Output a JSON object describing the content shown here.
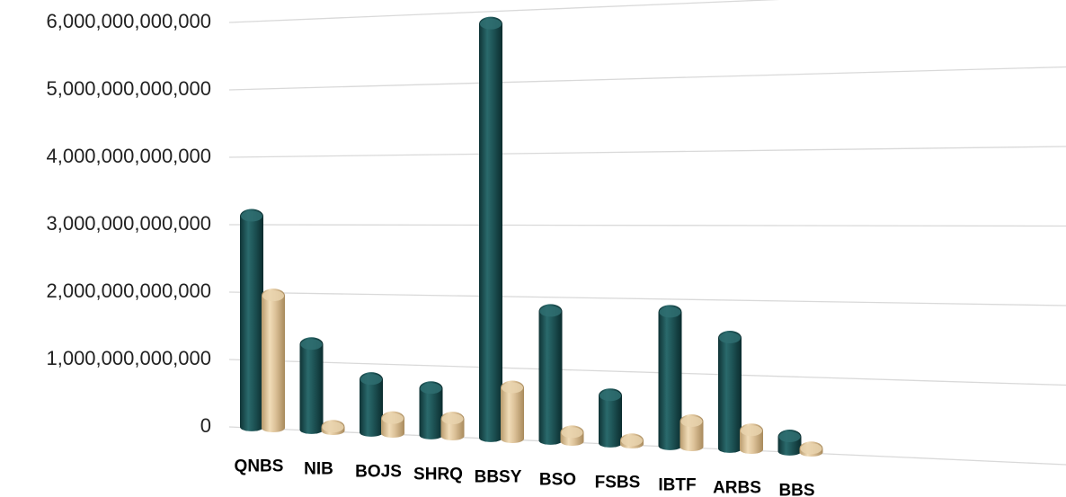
{
  "chart_data": {
    "type": "bar",
    "categories": [
      "QNBS",
      "NIB",
      "BOJS",
      "SHRQ",
      "BBSY",
      "BSO",
      "FSBS",
      "IBTF",
      "ARBS",
      "BBS"
    ],
    "series": [
      {
        "color": "#1e5456",
        "values": [
          3100000000000,
          1230000000000,
          750000000000,
          650000000000,
          5800000000000,
          1780000000000,
          640000000000,
          1800000000000,
          1470000000000,
          180000000000
        ]
      },
      {
        "color": "#dcc198",
        "values": [
          1930000000000,
          30000000000,
          200000000000,
          230000000000,
          700000000000,
          110000000000,
          15000000000,
          330000000000,
          240000000000,
          10000000000
        ]
      }
    ],
    "ylim": [
      0,
      6000000000000
    ],
    "yticks": [
      {
        "value": 0,
        "label": "0"
      },
      {
        "value": 1000000000000,
        "label": "1,000,000,000,000"
      },
      {
        "value": 2000000000000,
        "label": "2,000,000,000,000"
      },
      {
        "value": 3000000000000,
        "label": "3,000,000,000,000"
      },
      {
        "value": 4000000000000,
        "label": "4,000,000,000,000"
      },
      {
        "value": 5000000000000,
        "label": "5,000,000,000,000"
      },
      {
        "value": 6000000000000,
        "label": "6,000,000,000,000"
      }
    ],
    "grid": true,
    "legend": "none"
  }
}
